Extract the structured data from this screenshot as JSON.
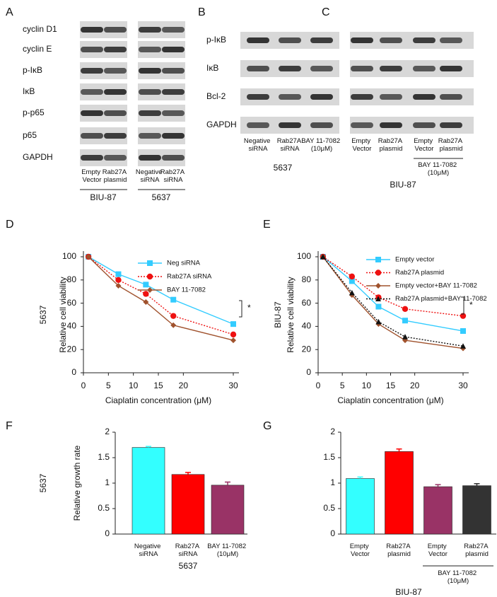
{
  "blots": [
    {
      "label": "A",
      "rows": [
        "cyclin D1",
        "cyclin E",
        "p-IκB",
        "IκB",
        "p-p65",
        "p65",
        "GAPDH"
      ],
      "lanes": [
        "Empty Vector",
        "Rab27A plasmid",
        "Negative siRNA",
        "Rab27A siRNA"
      ],
      "groups": [
        "BIU-87",
        "5637"
      ]
    },
    {
      "label": "B",
      "rows": [
        "p-IκB",
        "IκB",
        "Bcl-2",
        "GAPDH"
      ],
      "lanes": [
        "Negative siRNA",
        "Rab27A siRNA",
        "BAY 11-7082 (10μM)"
      ],
      "groups": [
        "5637"
      ]
    },
    {
      "label": "C",
      "lanes": [
        "Empty Vector",
        "Rab27A plasmid",
        "Empty Vector",
        "Rab27A plasmid"
      ],
      "treatment": "BAY 11-7082 (10μM)",
      "groups": [
        "BIU-87"
      ]
    }
  ],
  "chart_data": [
    {
      "type": "line",
      "label": "D",
      "side_label": "5637",
      "ylabel": "Relative cell viability",
      "xlabel": "Ciaplatin concentration (μM)",
      "annotation": "*",
      "x": [
        1,
        7,
        12.5,
        18,
        30
      ],
      "xlim": [
        0,
        30
      ],
      "xticks": [
        0,
        5,
        10,
        15,
        20,
        30
      ],
      "ylim": [
        0,
        100
      ],
      "yticks": [
        0,
        20,
        40,
        60,
        80,
        100
      ],
      "series": [
        {
          "name": "Neg siRNA",
          "color": "#33ccff",
          "marker": "square",
          "line_style": "solid",
          "values": [
            100,
            85,
            76,
            63,
            42
          ]
        },
        {
          "name": "Rab27A siRNA",
          "color": "#ee1111",
          "marker": "circle",
          "line_style": "dotted",
          "values": [
            100,
            80,
            68,
            49,
            33
          ]
        },
        {
          "name": "BAY 11-7082",
          "color": "#a0522d",
          "marker": "diamond",
          "line_style": "solid",
          "values": [
            100,
            75,
            61,
            41,
            28
          ]
        }
      ]
    },
    {
      "type": "line",
      "label": "E",
      "side_label": "BIU-87",
      "ylabel": "Relative cell viability",
      "xlabel": "Ciaplatin concentration (μM)",
      "annotation": "*",
      "x": [
        1,
        7,
        12.5,
        18,
        30
      ],
      "xlim": [
        0,
        30
      ],
      "xticks": [
        0,
        5,
        10,
        15,
        20,
        30
      ],
      "ylim": [
        0,
        100
      ],
      "yticks": [
        0,
        20,
        40,
        60,
        80,
        100
      ],
      "series": [
        {
          "name": "Empty vector",
          "color": "#33ccff",
          "marker": "square",
          "line_style": "solid",
          "values": [
            100,
            79,
            57,
            45,
            36
          ]
        },
        {
          "name": "Rab27A  plasmid",
          "color": "#ee1111",
          "marker": "circle",
          "line_style": "dotted",
          "values": [
            100,
            83,
            65,
            55,
            49
          ]
        },
        {
          "name": "Empty vector+BAY 11-7082",
          "color": "#a0522d",
          "marker": "diamond",
          "line_style": "solid",
          "values": [
            100,
            67,
            42,
            28,
            21
          ]
        },
        {
          "name": "Rab27A plasmid+BAY 11-7082",
          "color": "#111111",
          "marker": "triangle",
          "line_style": "dotted",
          "values": [
            100,
            69,
            44,
            31,
            23
          ]
        }
      ]
    },
    {
      "type": "bar",
      "label": "F",
      "side_label": "5637",
      "ylabel": "Relative growth rate",
      "xlabel": "5637",
      "categories": [
        "Negative siRNA",
        "Rab27A siRNA",
        "BAY 11-7082 (10μM)"
      ],
      "values": [
        1.7,
        1.17,
        0.96
      ],
      "errors": [
        0.02,
        0.04,
        0.06
      ],
      "colors": [
        "#33ffff",
        "#ff0000",
        "#993366"
      ],
      "ylim": [
        0,
        2
      ],
      "yticks": [
        0,
        0.5,
        1,
        1.5,
        2
      ]
    },
    {
      "type": "bar",
      "label": "G",
      "xlabel": "BIU-87",
      "treatment": "BAY 11-7082 (10μM)",
      "categories": [
        "Empty Vector",
        "Rab27A plasmid",
        "Empty Vector",
        "Rab27A plasmid"
      ],
      "values": [
        1.09,
        1.62,
        0.93,
        0.95
      ],
      "errors": [
        0.03,
        0.05,
        0.04,
        0.04
      ],
      "colors": [
        "#33ffff",
        "#ff0000",
        "#993366",
        "#333333"
      ],
      "ylim": [
        0,
        2
      ],
      "yticks": [
        0,
        0.5,
        1,
        1.5,
        2
      ]
    }
  ]
}
